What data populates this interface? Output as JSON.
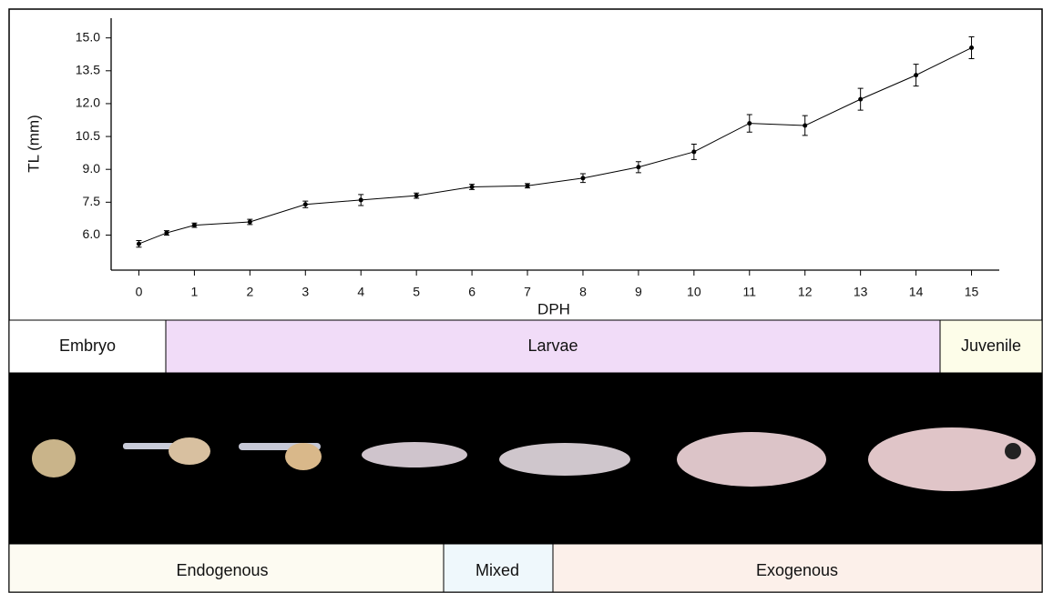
{
  "chart_data": {
    "type": "line",
    "x": [
      0,
      0.5,
      1,
      2,
      3,
      4,
      5,
      6,
      7,
      8,
      9,
      10,
      11,
      12,
      13,
      14,
      15
    ],
    "values": [
      5.6,
      6.1,
      6.45,
      6.6,
      7.4,
      7.6,
      7.8,
      8.2,
      8.25,
      8.6,
      9.1,
      9.8,
      11.1,
      11.0,
      12.2,
      13.3,
      14.55
    ],
    "errors": [
      0.15,
      0.1,
      0.1,
      0.12,
      0.15,
      0.25,
      0.12,
      0.12,
      0.1,
      0.2,
      0.25,
      0.35,
      0.4,
      0.45,
      0.5,
      0.5,
      0.5
    ],
    "color": "#000000",
    "xlabel": "DPH",
    "ylabel": "TL (mm)",
    "xlim": [
      -0.5,
      15.5
    ],
    "ylim": [
      4.4,
      15.9
    ],
    "xticks": [
      0,
      1,
      2,
      3,
      4,
      5,
      6,
      7,
      8,
      9,
      10,
      11,
      12,
      13,
      14,
      15
    ],
    "yticks": [
      {
        "value": 6,
        "label": "6.0"
      },
      {
        "value": 7.5,
        "label": "7.5"
      },
      {
        "value": 9,
        "label": "9.0"
      },
      {
        "value": 10.5,
        "label": "10.5"
      },
      {
        "value": 12,
        "label": "12.0"
      },
      {
        "value": 13.5,
        "label": "13.5"
      },
      {
        "value": 15,
        "label": "15.0"
      }
    ]
  },
  "stages": [
    "Embryo",
    "Larvae",
    "Juvenile"
  ],
  "feeding": [
    "Endogenous",
    "Mixed",
    "Exogenous"
  ]
}
